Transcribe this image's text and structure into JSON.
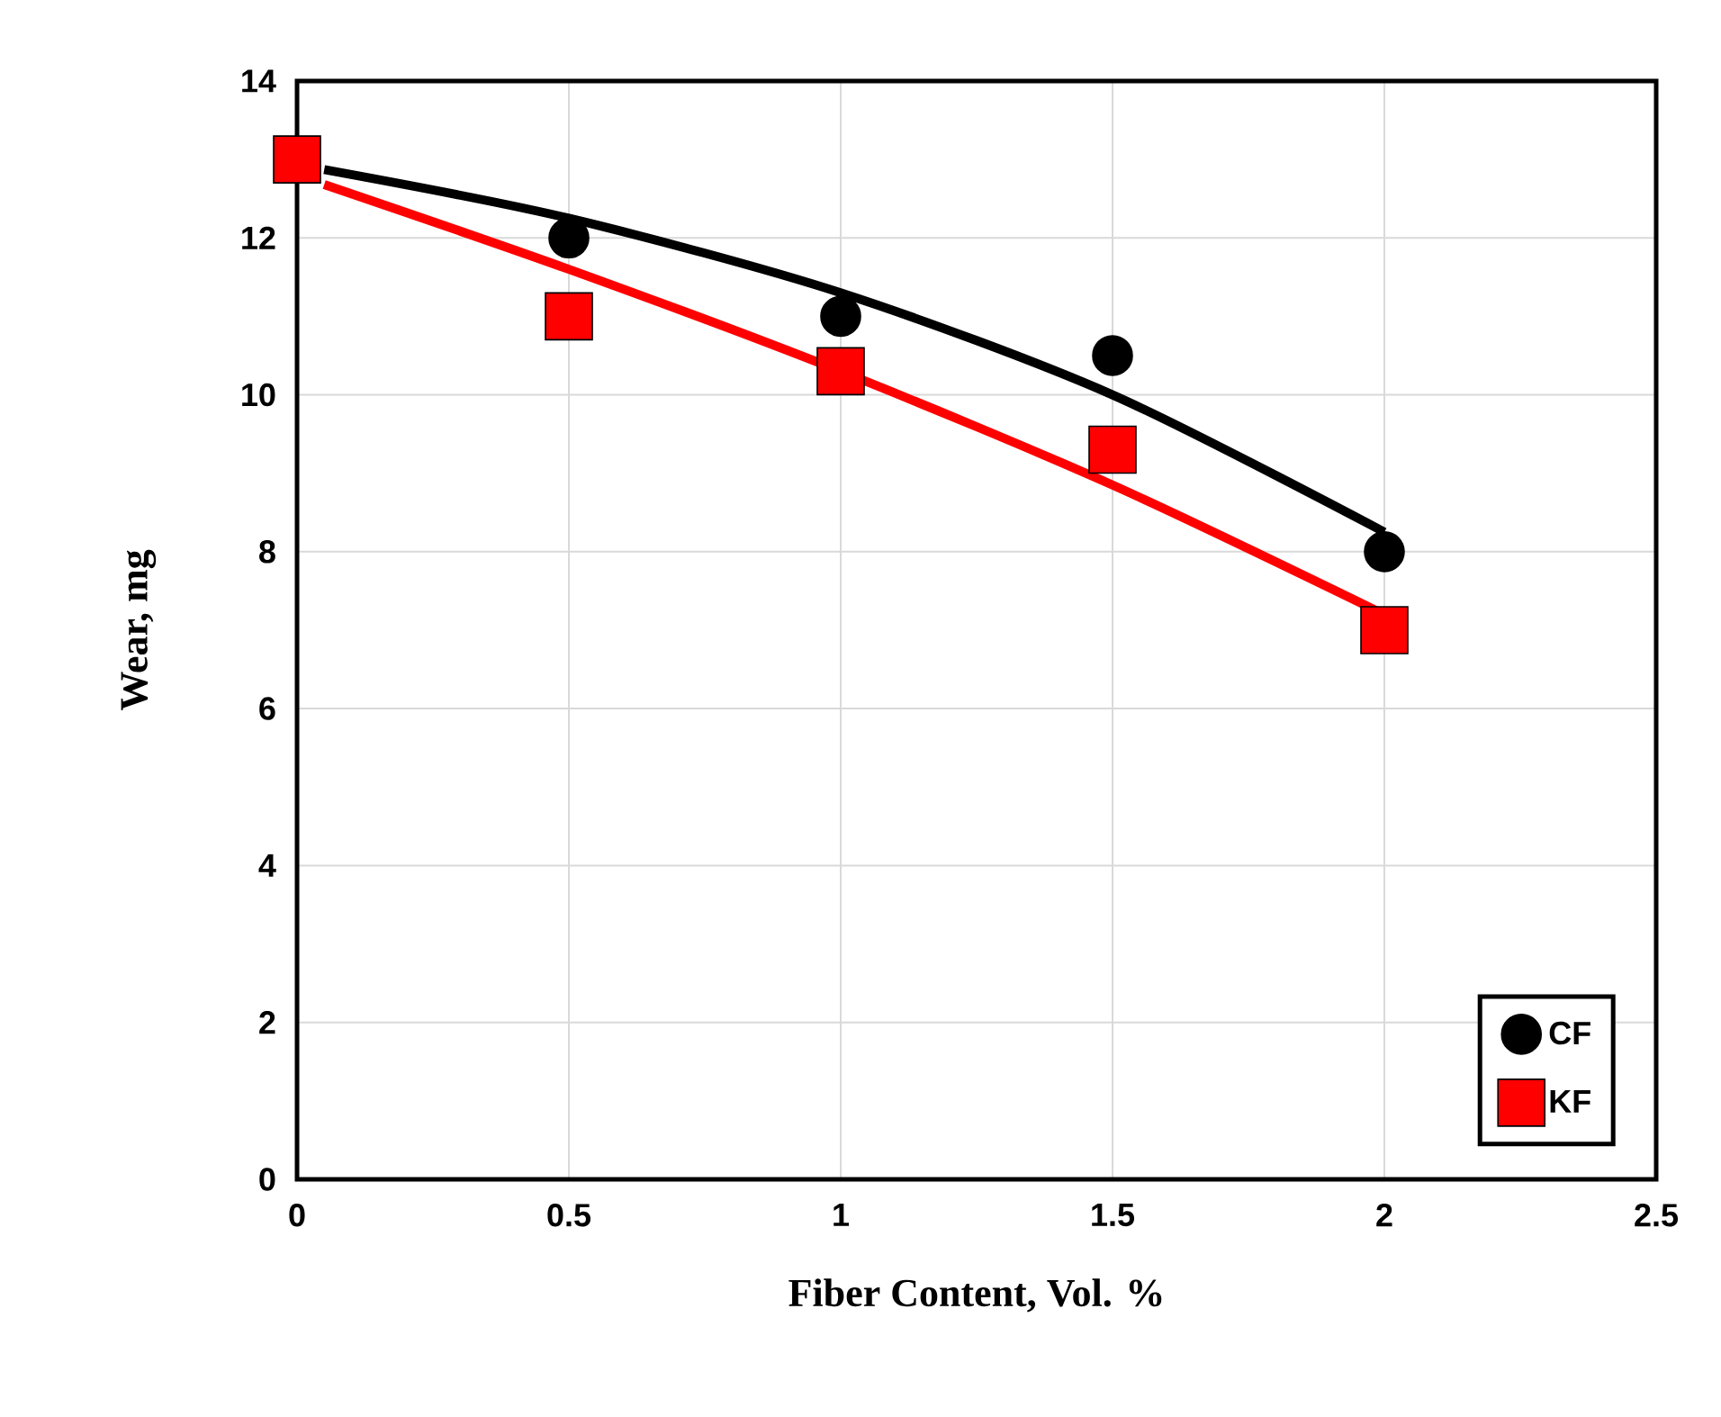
{
  "chart_data": {
    "type": "scatter",
    "xlabel": "Fiber Content, Vol. %",
    "ylabel": "Wear, mg",
    "xlim": [
      0,
      2.5
    ],
    "ylim": [
      0,
      14
    ],
    "xticks": [
      0,
      0.5,
      1,
      1.5,
      2,
      2.5
    ],
    "yticks": [
      0,
      2,
      4,
      6,
      8,
      10,
      12,
      14
    ],
    "grid": true,
    "legend": "bottom right",
    "series": [
      {
        "name": "CF",
        "color": "#000000",
        "marker": "circle",
        "x": [
          0.5,
          1,
          1.5,
          2
        ],
        "values": [
          12,
          11,
          10.5,
          8
        ]
      },
      {
        "name": "KF",
        "color": "#ff0000",
        "marker": "square",
        "x": [
          0,
          0.5,
          1,
          1.5,
          2
        ],
        "values": [
          13,
          11,
          10.3,
          9.3,
          7
        ]
      },
      {
        "type": "line",
        "color": "#000000",
        "marker": "none",
        "x": [
          0.05,
          0.5,
          1,
          1.5,
          2
        ],
        "values": [
          12.87,
          12.25,
          11.3,
          10.0,
          8.25
        ]
      },
      {
        "type": "line",
        "color": "#ff0000",
        "marker": "none",
        "x": [
          0.05,
          0.5,
          1,
          1.5,
          2
        ],
        "values": [
          12.68,
          11.6,
          10.3,
          8.85,
          7.2
        ]
      }
    ]
  }
}
